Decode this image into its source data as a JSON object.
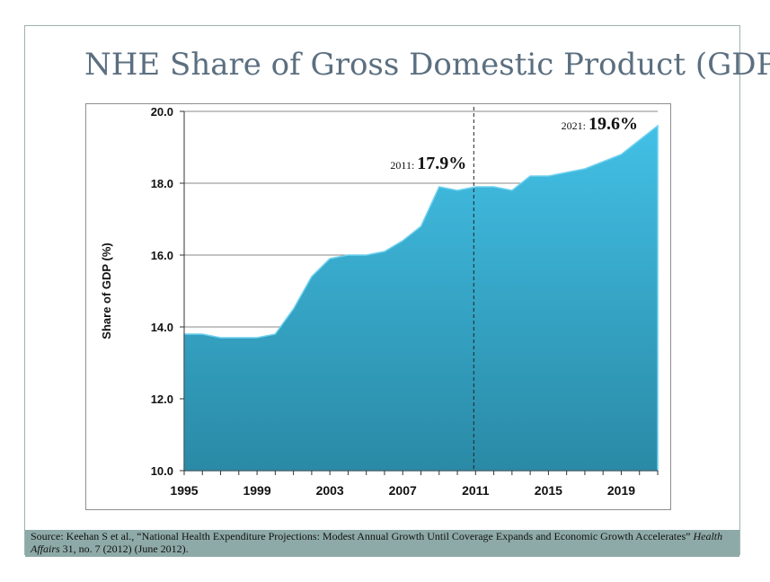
{
  "title": "NHE Share of Gross Domestic Product (GDP)",
  "source": {
    "prefix": "Source: Keehan S et al., “National Health Expenditure Projections: Modest Annual Growth Until Coverage Expands and Economic Growth Accelerates” ",
    "journal": "Health Affairs",
    "suffix": " 31, no. 7 (2012) (June 2012)."
  },
  "chart_data": {
    "type": "area",
    "title": "NHE Share of Gross Domestic Product (GDP)",
    "xlabel": "",
    "ylabel": "Share of GDP (%)",
    "xlim": [
      1995,
      2021
    ],
    "ylim": [
      10.0,
      20.0
    ],
    "x_ticks": [
      "1995",
      "1999",
      "2003",
      "2007",
      "2011",
      "2015",
      "2019"
    ],
    "y_ticks": [
      "10.0",
      "12.0",
      "14.0",
      "16.0",
      "18.0",
      "20.0"
    ],
    "grid": "horizontal",
    "legend": "none",
    "x": [
      1995,
      1996,
      1997,
      1998,
      1999,
      2000,
      2001,
      2002,
      2003,
      2004,
      2005,
      2006,
      2007,
      2008,
      2009,
      2010,
      2011,
      2012,
      2013,
      2014,
      2015,
      2016,
      2017,
      2018,
      2019,
      2020,
      2021
    ],
    "series": [
      {
        "values": [
          13.8,
          13.8,
          13.7,
          13.7,
          13.7,
          13.8,
          14.5,
          15.4,
          15.9,
          16.0,
          16.0,
          16.1,
          16.4,
          16.8,
          17.9,
          17.8,
          17.9,
          17.9,
          17.8,
          18.2,
          18.2,
          18.3,
          18.4,
          18.6,
          18.8,
          19.2,
          19.6
        ],
        "color": "#3fa9cc"
      }
    ],
    "divider_x": 2011,
    "annotations": [
      {
        "year_label": "2011:",
        "value_label": "17.9%",
        "x": 2011,
        "y": 17.9
      },
      {
        "year_label": "2021:",
        "value_label": "19.6%",
        "x": 2021,
        "y": 19.6
      }
    ]
  }
}
